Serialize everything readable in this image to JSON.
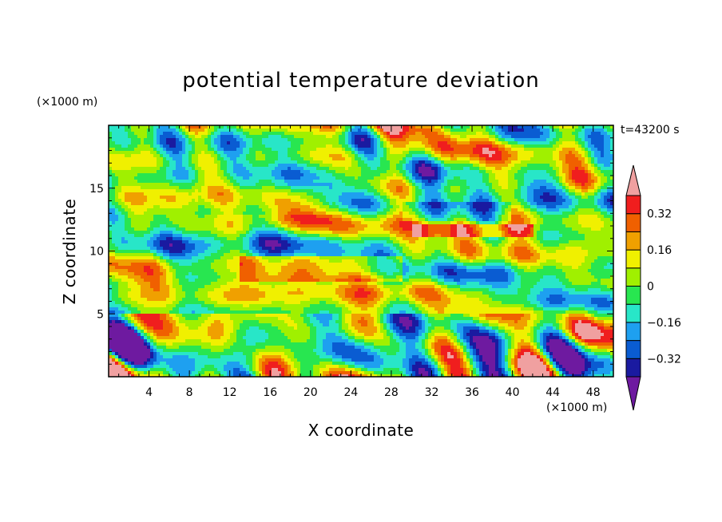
{
  "chart_data": {
    "type": "heatmap",
    "title": "potential temperature deviation",
    "xlabel": "X coordinate",
    "ylabel": "Z coordinate",
    "x_unit": "(×1000 m)",
    "y_unit": "(×1000 m)",
    "time_label": "t=43200 s",
    "xlim": [
      0,
      50
    ],
    "ylim": [
      0,
      20
    ],
    "x_ticks": [
      4,
      8,
      12,
      16,
      20,
      24,
      28,
      32,
      36,
      40,
      44,
      48
    ],
    "y_ticks": [
      5,
      10,
      15
    ],
    "colorbar": {
      "levels": [
        -0.4,
        -0.32,
        -0.24,
        -0.16,
        -0.08,
        0,
        0.08,
        0.16,
        0.24,
        0.32,
        0.4
      ],
      "tick_labels": [
        "0.32",
        "0.16",
        "0",
        "−0.16",
        "−0.32"
      ],
      "tick_values": [
        0.32,
        0.16,
        0,
        -0.16,
        -0.32
      ],
      "colors": [
        "#6e1aa0",
        "#1a1aa0",
        "#0a5cd2",
        "#1ea0f0",
        "#28e6c8",
        "#28e650",
        "#a0f000",
        "#f0f000",
        "#f0a000",
        "#f06000",
        "#f01e1e",
        "#f0a0a0"
      ],
      "extend": "both"
    }
  }
}
